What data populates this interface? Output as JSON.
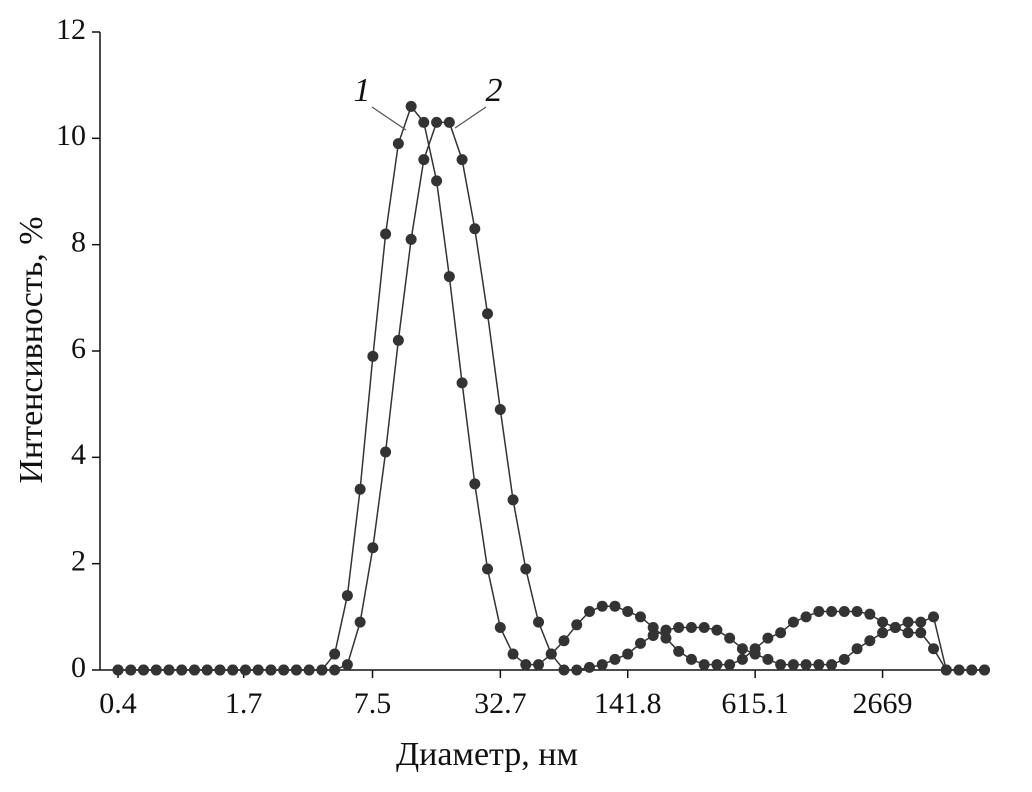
{
  "chart_data": {
    "type": "line",
    "xlabel": "Диаметр, нм",
    "ylabel": "Интенсивность, %",
    "x": [
      0.4,
      0.4632,
      0.5365,
      0.6213,
      0.7195,
      0.8332,
      0.9649,
      1.117,
      1.294,
      1.499,
      1.736,
      2.01,
      2.328,
      2.696,
      3.122,
      3.615,
      4.187,
      4.849,
      5.615,
      6.503,
      7.531,
      8.721,
      10.1,
      11.7,
      13.54,
      15.69,
      18.17,
      21.04,
      24.36,
      28.21,
      32.67,
      37.84,
      43.82,
      50.75,
      58.77,
      68.06,
      78.82,
      91.28,
      105.7,
      122.4,
      141.8,
      164.2,
      190.1,
      220.2,
      255,
      295.3,
      342,
      396.1,
      458.7,
      531.2,
      615.1,
      712.4,
      825,
      955.4,
      1106,
      1281,
      1484,
      1718,
      1990,
      2305,
      2669,
      3091,
      3580,
      4145,
      4801,
      5560,
      6439,
      7456,
      8635
    ],
    "series": [
      {
        "name": "1",
        "color": "#333333",
        "values": [
          0,
          0,
          0,
          0,
          0,
          0,
          0,
          0,
          0,
          0,
          0,
          0,
          0,
          0,
          0,
          0,
          0,
          0.3,
          1.4,
          3.4,
          5.9,
          8.2,
          9.9,
          10.6,
          10.3,
          9.2,
          7.4,
          5.4,
          3.5,
          1.9,
          0.8,
          0.3,
          0.1,
          0.1,
          0.3,
          0.55,
          0.85,
          1.1,
          1.2,
          1.2,
          1.1,
          1.0,
          0.8,
          0.6,
          0.35,
          0.2,
          0.1,
          0.1,
          0.1,
          0.2,
          0.4,
          0.6,
          0.7,
          0.9,
          1.0,
          1.1,
          1.1,
          1.1,
          1.1,
          1.05,
          0.9,
          0.8,
          0.7,
          0.7,
          0.4,
          0,
          0,
          0,
          0
        ]
      },
      {
        "name": "2",
        "color": "#333333",
        "values": [
          0,
          0,
          0,
          0,
          0,
          0,
          0,
          0,
          0,
          0,
          0,
          0,
          0,
          0,
          0,
          0,
          0,
          0,
          0.1,
          0.9,
          2.3,
          4.1,
          6.2,
          8.1,
          9.6,
          10.3,
          10.3,
          9.6,
          8.3,
          6.7,
          4.9,
          3.2,
          1.9,
          0.9,
          0.3,
          0,
          0,
          0.05,
          0.1,
          0.2,
          0.3,
          0.5,
          0.65,
          0.75,
          0.8,
          0.8,
          0.8,
          0.75,
          0.6,
          0.4,
          0.3,
          0.2,
          0.1,
          0.1,
          0.1,
          0.1,
          0.1,
          0.2,
          0.4,
          0.55,
          0.7,
          0.8,
          0.9,
          0.9,
          1.0,
          0,
          0,
          0,
          0
        ]
      }
    ],
    "xlim": [
      0.325,
      9200
    ],
    "xticks": [
      0.4,
      1.7,
      7.5,
      32.7,
      141.8,
      615.1,
      2669
    ],
    "log_x": true,
    "ylim": [
      0,
      12
    ],
    "yticks": [
      0,
      2,
      4,
      6,
      8,
      10,
      12
    ],
    "grid": false
  }
}
